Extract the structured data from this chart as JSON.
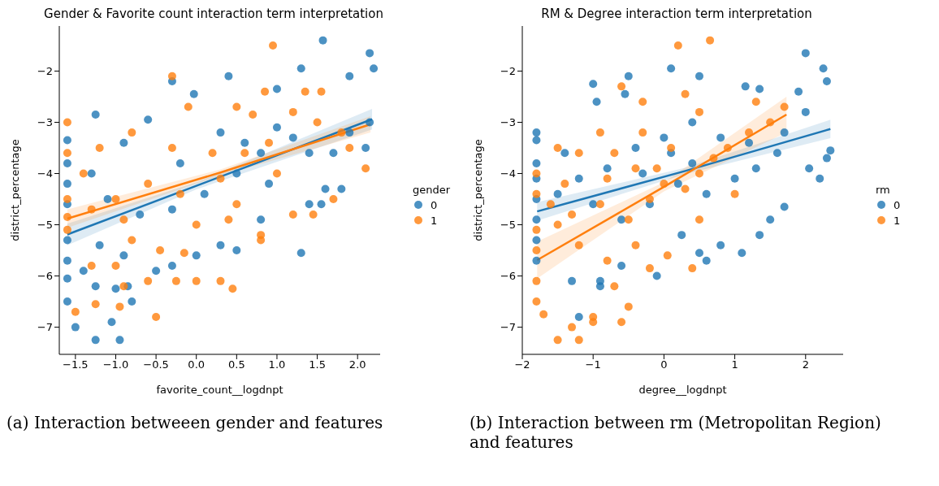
{
  "chart_data": [
    {
      "type": "scatter",
      "title": "Gender & Favorite count interaction term interpretation",
      "xlabel": "favorite_count__logdnpt",
      "ylabel": "district_percentage",
      "legend_title": "gender",
      "legend": "right",
      "marker": "circle",
      "xlim": [
        -1.7,
        2.28
      ],
      "xticks": [
        {
          "value": -1.5,
          "label": "−1.5"
        },
        {
          "value": -1.0,
          "label": "−1.0"
        },
        {
          "value": -0.5,
          "label": "−0.5"
        },
        {
          "value": 0,
          "label": "0.0"
        },
        {
          "value": 0.5,
          "label": "0.5"
        },
        {
          "value": 1.0,
          "label": "1.0"
        },
        {
          "value": 1.5,
          "label": "1.5"
        },
        {
          "value": 2.0,
          "label": "2.0"
        }
      ],
      "ylim": [
        -7.53,
        -1.12
      ],
      "yticks": [
        {
          "value": -7,
          "label": "−7"
        },
        {
          "value": -6,
          "label": "−6"
        },
        {
          "value": -5,
          "label": "−5"
        },
        {
          "value": -4,
          "label": "−4"
        },
        {
          "value": -3,
          "label": "−3"
        },
        {
          "value": -2,
          "label": "−2"
        }
      ],
      "annotations": [
        "(a) Interaction betweeen gender and features"
      ],
      "series": [
        {
          "name": "0",
          "color": "#1f77b4",
          "x": [
            1.57,
            2.15,
            1.3,
            2.2,
            -0.3,
            0.4,
            -0.03,
            1.0,
            1.9,
            -1.25,
            -1.6,
            -1.6,
            -1.6,
            -1.6,
            -1.6,
            -1.6,
            -1.6,
            -1.6,
            -1.5,
            -1.25,
            -0.95,
            -1.05,
            -0.8,
            -0.85,
            -1.0,
            -1.25,
            -1.4,
            -0.3,
            -0.5,
            0.0,
            0.3,
            0.5,
            1.3,
            0.8,
            1.4,
            1.55,
            1.6,
            1.8,
            2.1,
            2.15,
            1.9,
            1.7,
            1.2,
            1.0,
            0.6,
            0.3,
            -0.6,
            -0.9,
            -1.3,
            -1.1,
            -0.7,
            -0.3,
            0.1,
            0.5,
            0.8,
            -0.2,
            -1.2,
            -0.9,
            0.9,
            1.4
          ],
          "values": [
            -1.4,
            -1.65,
            -1.95,
            -1.95,
            -2.2,
            -2.1,
            -2.45,
            -2.35,
            -2.1,
            -2.85,
            -3.35,
            -3.8,
            -4.2,
            -4.6,
            -5.3,
            -5.7,
            -6.05,
            -6.5,
            -7.0,
            -7.25,
            -7.25,
            -6.9,
            -6.5,
            -6.2,
            -6.25,
            -6.2,
            -5.9,
            -5.8,
            -5.9,
            -5.6,
            -5.4,
            -5.5,
            -5.55,
            -4.9,
            -4.6,
            -4.6,
            -4.3,
            -4.3,
            -3.5,
            -3.0,
            -3.2,
            -3.6,
            -3.3,
            -3.1,
            -3.4,
            -3.2,
            -2.95,
            -3.4,
            -4.0,
            -4.5,
            -4.8,
            -4.7,
            -4.4,
            -4.0,
            -3.6,
            -3.8,
            -5.4,
            -5.6,
            -4.2,
            -3.6
          ]
        },
        {
          "name": "1",
          "color": "#ff7f0e",
          "x": [
            0.95,
            -0.3,
            0.85,
            1.55,
            1.35,
            0.5,
            -0.1,
            -1.6,
            -1.6,
            -1.6,
            -1.6,
            -1.6,
            -1.5,
            -1.25,
            -0.95,
            -0.5,
            -0.9,
            -0.6,
            -0.25,
            0.3,
            0.45,
            0.0,
            -0.45,
            -0.15,
            -1.0,
            -1.3,
            -0.8,
            0.0,
            0.4,
            0.8,
            0.8,
            1.2,
            1.45,
            1.7,
            2.1,
            1.8,
            1.5,
            1.2,
            0.9,
            0.6,
            0.2,
            -0.3,
            -0.8,
            -1.2,
            -1.4,
            -1.0,
            -0.6,
            -0.2,
            0.3,
            0.5,
            1.0,
            -0.9,
            -1.3,
            0.7,
            1.9
          ],
          "values": [
            -1.5,
            -2.1,
            -2.4,
            -2.4,
            -2.4,
            -2.7,
            -2.7,
            -3.0,
            -3.6,
            -4.5,
            -4.85,
            -5.1,
            -6.7,
            -6.55,
            -6.6,
            -6.8,
            -6.2,
            -6.1,
            -6.1,
            -6.1,
            -6.25,
            -6.1,
            -5.5,
            -5.55,
            -5.8,
            -5.8,
            -5.3,
            -5.0,
            -4.9,
            -5.3,
            -5.2,
            -4.8,
            -4.8,
            -4.5,
            -3.9,
            -3.2,
            -3.0,
            -2.8,
            -3.4,
            -3.6,
            -3.6,
            -3.5,
            -3.2,
            -3.5,
            -4.0,
            -4.5,
            -4.2,
            -4.4,
            -4.1,
            -4.6,
            -4.0,
            -4.9,
            -4.7,
            -2.85,
            -3.5
          ]
        },
        {
          "type": "line",
          "marker": "none",
          "color": "#1f77b4",
          "x": [
            -1.6,
            0.0,
            2.18
          ],
          "values": [
            -5.19,
            -4.24,
            -2.94
          ],
          "lower": [
            -5.4,
            -4.31,
            -3.14
          ],
          "upper": [
            -4.98,
            -4.17,
            -2.74
          ]
        },
        {
          "type": "line",
          "marker": "none",
          "color": "#ff7f0e",
          "x": [
            -1.6,
            0.3,
            2.16
          ],
          "values": [
            -4.88,
            -3.98,
            -3.04
          ],
          "lower": [
            -5.06,
            -4.04,
            -3.2
          ],
          "upper": [
            -4.7,
            -3.92,
            -2.88
          ]
        }
      ]
    },
    {
      "type": "scatter",
      "title": "RM & Degree interaction term interpretation",
      "xlabel": "degree__logdnpt",
      "ylabel": "district_percentage",
      "legend_title": "rm",
      "legend": "right",
      "marker": "circle",
      "xlim": [
        -2.0,
        2.53
      ],
      "xticks": [
        {
          "value": -2,
          "label": "−2"
        },
        {
          "value": -1,
          "label": "−1"
        },
        0,
        1,
        2
      ],
      "ylim": [
        -7.53,
        -1.12
      ],
      "yticks": [
        {
          "value": -7,
          "label": "−7"
        },
        {
          "value": -6,
          "label": "−6"
        },
        {
          "value": -5,
          "label": "−5"
        },
        {
          "value": -4,
          "label": "−4"
        },
        {
          "value": -3,
          "label": "−3"
        },
        {
          "value": -2,
          "label": "−2"
        }
      ],
      "annotations": [
        "(b) Interaction between rm (Metropolitan Region) and features"
      ],
      "series": [
        {
          "name": "0",
          "color": "#1f77b4",
          "x": [
            2.0,
            -1.0,
            0.1,
            0.5,
            1.15,
            1.35,
            2.25,
            2.3,
            1.9,
            -0.5,
            -0.55,
            -0.95,
            -1.8,
            -1.8,
            -1.8,
            -1.8,
            -1.8,
            -1.8,
            -1.8,
            -1.8,
            -1.3,
            -1.2,
            -0.9,
            -0.9,
            -0.6,
            -0.1,
            0.5,
            0.6,
            1.1,
            0.25,
            0.8,
            1.35,
            1.5,
            1.7,
            2.2,
            2.3,
            2.35,
            2.05,
            1.6,
            1.2,
            0.8,
            0.4,
            0.0,
            -0.4,
            -0.8,
            -1.2,
            -1.5,
            -1.0,
            -0.3,
            0.2,
            0.6,
            1.0,
            -0.6,
            0.1,
            1.7,
            2.0,
            -0.2,
            0.4,
            1.3,
            -1.4
          ],
          "values": [
            -1.65,
            -2.25,
            -1.95,
            -2.1,
            -2.3,
            -2.35,
            -1.95,
            -2.2,
            -2.4,
            -2.1,
            -2.45,
            -2.6,
            -3.2,
            -3.35,
            -3.8,
            -4.1,
            -4.5,
            -4.9,
            -5.3,
            -5.7,
            -6.1,
            -6.8,
            -6.2,
            -6.1,
            -5.8,
            -6.0,
            -5.55,
            -5.7,
            -5.55,
            -5.2,
            -5.4,
            -5.2,
            -4.9,
            -4.65,
            -4.1,
            -3.7,
            -3.55,
            -3.9,
            -3.6,
            -3.4,
            -3.3,
            -3.0,
            -3.3,
            -3.5,
            -3.9,
            -4.1,
            -4.4,
            -4.6,
            -4.0,
            -4.2,
            -4.4,
            -4.1,
            -4.9,
            -3.6,
            -3.2,
            -2.8,
            -4.6,
            -3.8,
            -3.9,
            -3.6
          ]
        },
        {
          "name": "1",
          "color": "#ff7f0e",
          "x": [
            0.2,
            0.65,
            -1.8,
            -1.8,
            -1.8,
            -1.8,
            -1.8,
            -1.8,
            -1.7,
            -1.5,
            -1.2,
            -1.3,
            -1.0,
            -1.0,
            -0.6,
            -0.5,
            -0.7,
            -0.2,
            0.4,
            0.05,
            -0.4,
            -0.8,
            -1.2,
            -1.5,
            -1.3,
            -0.9,
            -0.5,
            -0.2,
            0.0,
            0.3,
            0.5,
            0.9,
            1.2,
            1.5,
            1.7,
            1.3,
            0.5,
            -0.3,
            -0.6,
            -0.9,
            -1.2,
            -1.5,
            -1.4,
            -0.7,
            -0.4,
            0.1,
            -0.1,
            0.7,
            1.0,
            0.5,
            -0.8,
            -1.6,
            0.3,
            -0.3
          ],
          "values": [
            -1.5,
            -1.4,
            -4.0,
            -4.4,
            -5.1,
            -5.5,
            -6.1,
            -6.5,
            -6.75,
            -7.25,
            -7.25,
            -7.0,
            -6.9,
            -6.8,
            -6.9,
            -6.6,
            -6.2,
            -5.85,
            -5.85,
            -5.6,
            -5.4,
            -5.7,
            -5.4,
            -5.0,
            -4.8,
            -4.6,
            -4.9,
            -4.5,
            -4.2,
            -4.3,
            -4.0,
            -3.5,
            -3.2,
            -3.0,
            -2.7,
            -2.6,
            -2.8,
            -2.6,
            -2.3,
            -3.2,
            -3.6,
            -3.5,
            -4.2,
            -3.6,
            -3.9,
            -3.5,
            -3.9,
            -3.7,
            -4.4,
            -4.9,
            -4.1,
            -4.6,
            -2.45,
            -3.2
          ]
        },
        {
          "type": "line",
          "marker": "none",
          "color": "#1f77b4",
          "x": [
            -1.79,
            0.3,
            2.35
          ],
          "values": [
            -4.74,
            -3.95,
            -3.13
          ],
          "lower": [
            -4.92,
            -4.01,
            -3.31
          ],
          "upper": [
            -4.56,
            -3.89,
            -2.95
          ]
        },
        {
          "type": "line",
          "marker": "none",
          "color": "#ff7f0e",
          "x": [
            -1.79,
            0.0,
            1.73
          ],
          "values": [
            -5.69,
            -4.26,
            -2.85
          ],
          "lower": [
            -6.05,
            -4.35,
            -3.2
          ],
          "upper": [
            -5.33,
            -4.17,
            -2.5
          ]
        }
      ]
    }
  ]
}
